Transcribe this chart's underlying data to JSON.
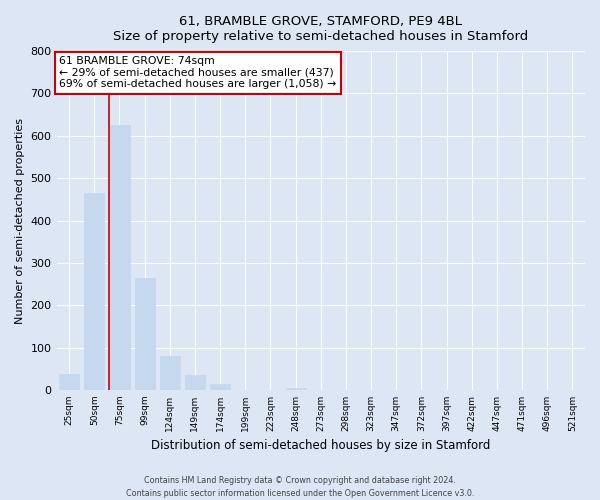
{
  "title": "61, BRAMBLE GROVE, STAMFORD, PE9 4BL",
  "subtitle": "Size of property relative to semi-detached houses in Stamford",
  "xlabel": "Distribution of semi-detached houses by size in Stamford",
  "ylabel": "Number of semi-detached properties",
  "bar_labels": [
    "25sqm",
    "50sqm",
    "75sqm",
    "99sqm",
    "124sqm",
    "149sqm",
    "174sqm",
    "199sqm",
    "223sqm",
    "248sqm",
    "273sqm",
    "298sqm",
    "323sqm",
    "347sqm",
    "372sqm",
    "397sqm",
    "422sqm",
    "447sqm",
    "471sqm",
    "496sqm",
    "521sqm"
  ],
  "bar_values": [
    38,
    465,
    625,
    265,
    80,
    35,
    13,
    0,
    0,
    5,
    0,
    0,
    0,
    0,
    0,
    0,
    0,
    0,
    0,
    0,
    0
  ],
  "bar_color": "#c5d8ee",
  "property_line_index": 2,
  "annotation_title": "61 BRAMBLE GROVE: 74sqm",
  "annotation_line1": "← 29% of semi-detached houses are smaller (437)",
  "annotation_line2": "69% of semi-detached houses are larger (1,058) →",
  "annotation_box_facecolor": "#ffffff",
  "annotation_box_edgecolor": "#cc0000",
  "property_line_color": "#cc0000",
  "ylim": [
    0,
    800
  ],
  "yticks": [
    0,
    100,
    200,
    300,
    400,
    500,
    600,
    700,
    800
  ],
  "background_color": "#dce6f5",
  "grid_color": "#ffffff",
  "footer_line1": "Contains HM Land Registry data © Crown copyright and database right 2024.",
  "footer_line2": "Contains public sector information licensed under the Open Government Licence v3.0."
}
